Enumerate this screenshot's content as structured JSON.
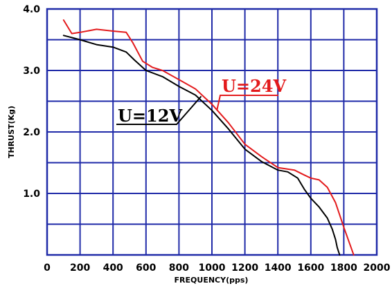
{
  "chart_data": {
    "type": "line",
    "title": "",
    "xlabel": "FREQUENCY(pps)",
    "ylabel": "THRUST(Kg)",
    "xlim": [
      0,
      2000
    ],
    "ylim": [
      0,
      4.0
    ],
    "x_ticks": [
      0,
      200,
      400,
      600,
      800,
      1000,
      1200,
      1400,
      1600,
      1800,
      2000
    ],
    "x_tick_labels": [
      "0",
      "200",
      "400",
      "600",
      "800",
      "1000",
      "1200",
      "1400",
      "1600",
      "1800",
      "2000"
    ],
    "y_ticks": [
      1.0,
      2.0,
      3.0,
      4.0
    ],
    "y_tick_labels": [
      "1.0",
      "2.0",
      "3.0",
      "4.0"
    ],
    "grid": true,
    "grid_x_step": 200,
    "grid_y_step": 0.5,
    "series": [
      {
        "name": "U=12V",
        "color": "#000000",
        "x": [
          100,
          200,
          300,
          400,
          480,
          530,
          600,
          700,
          800,
          900,
          1000,
          1100,
          1200,
          1300,
          1400,
          1460,
          1520,
          1560,
          1600,
          1650,
          1700,
          1730,
          1750,
          1760,
          1775
        ],
        "y": [
          3.57,
          3.5,
          3.42,
          3.38,
          3.3,
          3.17,
          3.0,
          2.9,
          2.74,
          2.6,
          2.35,
          2.05,
          1.72,
          1.52,
          1.38,
          1.35,
          1.25,
          1.07,
          0.92,
          0.78,
          0.6,
          0.42,
          0.25,
          0.12,
          0.0
        ]
      },
      {
        "name": "U=24V",
        "color": "#e31a1c",
        "x": [
          100,
          150,
          200,
          300,
          400,
          480,
          520,
          580,
          640,
          700,
          800,
          900,
          960,
          1000,
          1100,
          1200,
          1300,
          1400,
          1500,
          1560,
          1600,
          1650,
          1700,
          1750,
          1800,
          1840,
          1860
        ],
        "y": [
          3.82,
          3.6,
          3.62,
          3.67,
          3.64,
          3.62,
          3.45,
          3.15,
          3.05,
          3.0,
          2.85,
          2.7,
          2.55,
          2.45,
          2.15,
          1.8,
          1.6,
          1.42,
          1.38,
          1.3,
          1.25,
          1.22,
          1.1,
          0.85,
          0.45,
          0.15,
          0.0
        ]
      }
    ],
    "annotations": [
      {
        "label": "U=12V",
        "color": "#000000",
        "x": 935,
        "y": 2.58
      },
      {
        "label": "U=24V",
        "color": "#e31a1c",
        "x": 1030,
        "y": 2.35
      }
    ]
  },
  "colors": {
    "grid": "#1f2aa8",
    "axis": "#000000"
  }
}
